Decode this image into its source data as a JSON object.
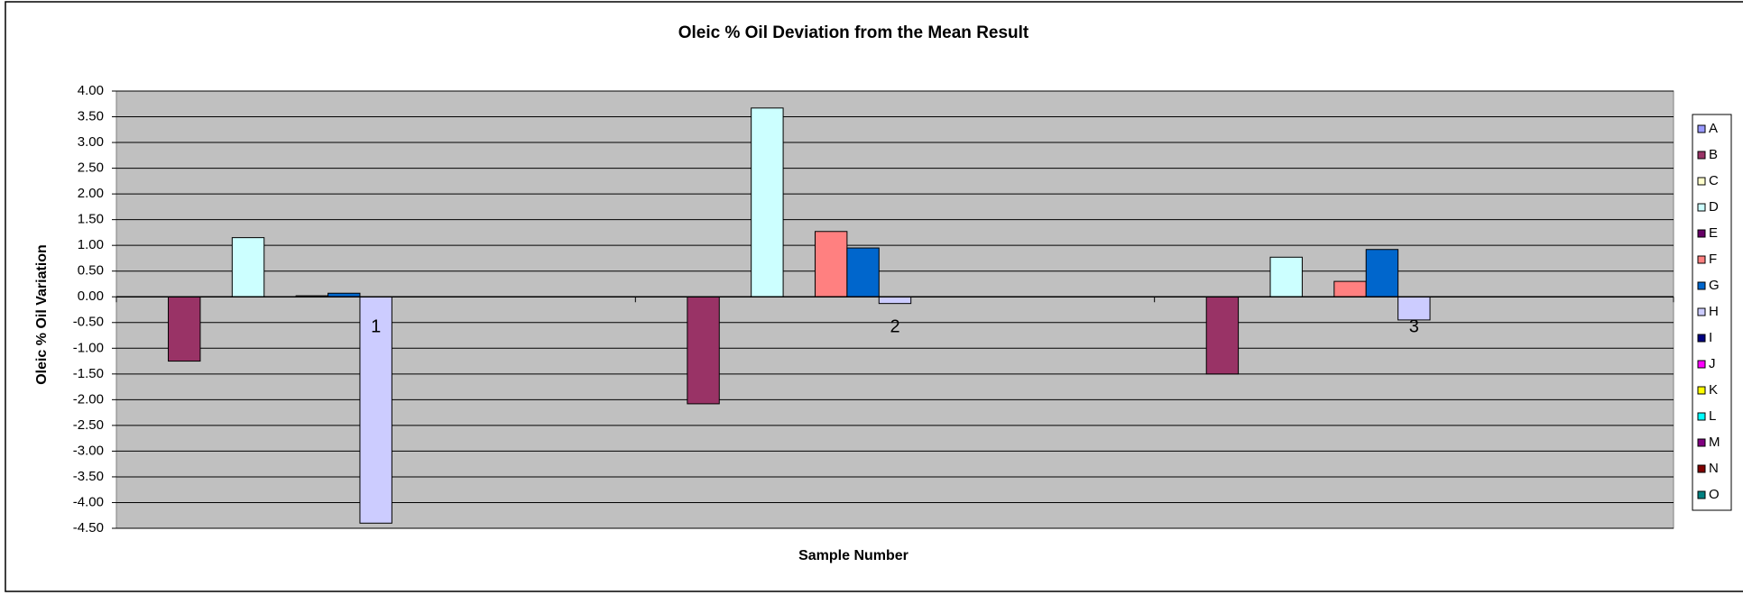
{
  "chart_data": {
    "type": "bar",
    "title": "Oleic % Oil Deviation from the Mean Result",
    "x_label": "Sample Number",
    "y_label": "Oleic % Oil Variation",
    "categories": [
      "1",
      "2",
      "3"
    ],
    "series": [
      {
        "name": "A",
        "color": "#9999FF",
        "values": [
          null,
          null,
          null
        ]
      },
      {
        "name": "B",
        "color": "#993366",
        "values": [
          -1.25,
          -2.08,
          -1.5
        ]
      },
      {
        "name": "C",
        "color": "#FFFFCC",
        "values": [
          null,
          null,
          null
        ]
      },
      {
        "name": "D",
        "color": "#CCFFFF",
        "values": [
          1.15,
          3.67,
          0.77
        ]
      },
      {
        "name": "E",
        "color": "#660066",
        "values": [
          null,
          null,
          null
        ]
      },
      {
        "name": "F",
        "color": "#FF8080",
        "values": [
          0.02,
          1.27,
          0.3
        ]
      },
      {
        "name": "G",
        "color": "#0066CC",
        "values": [
          0.07,
          0.95,
          0.92
        ]
      },
      {
        "name": "H",
        "color": "#CCCCFF",
        "values": [
          -4.4,
          -0.13,
          -0.45
        ]
      },
      {
        "name": "I",
        "color": "#000080",
        "values": [
          null,
          null,
          null
        ]
      },
      {
        "name": "J",
        "color": "#FF00FF",
        "values": [
          null,
          null,
          null
        ]
      },
      {
        "name": "K",
        "color": "#FFFF00",
        "values": [
          null,
          null,
          null
        ]
      },
      {
        "name": "L",
        "color": "#00FFFF",
        "values": [
          null,
          null,
          null
        ]
      },
      {
        "name": "M",
        "color": "#800080",
        "values": [
          null,
          null,
          null
        ]
      },
      {
        "name": "N",
        "color": "#800000",
        "values": [
          null,
          null,
          null
        ]
      },
      {
        "name": "O",
        "color": "#008080",
        "values": [
          null,
          null,
          null
        ]
      }
    ],
    "ylim": [
      -4.5,
      4
    ],
    "yticks": [
      {
        "value": 4,
        "label": "4.00"
      },
      {
        "value": 3.5,
        "label": "3.50"
      },
      {
        "value": 3,
        "label": "3.00"
      },
      {
        "value": 2.5,
        "label": "2.50"
      },
      {
        "value": 2,
        "label": "2.00"
      },
      {
        "value": 1.5,
        "label": "1.50"
      },
      {
        "value": 1,
        "label": "1.00"
      },
      {
        "value": 0.5,
        "label": "0.50"
      },
      {
        "value": 0,
        "label": "0.00"
      },
      {
        "value": -0.5,
        "label": "-0.50"
      },
      {
        "value": -1,
        "label": "-1.00"
      },
      {
        "value": -1.5,
        "label": "-1.50"
      },
      {
        "value": -2,
        "label": "-2.00"
      },
      {
        "value": -2.5,
        "label": "-2.50"
      },
      {
        "value": -3,
        "label": "-3.00"
      },
      {
        "value": -3.5,
        "label": "-3.50"
      },
      {
        "value": -4,
        "label": "-4.00"
      },
      {
        "value": -4.5,
        "label": "-4.50"
      }
    ],
    "grid": true,
    "plot_background": "#C0C0C0",
    "legend": "right"
  }
}
